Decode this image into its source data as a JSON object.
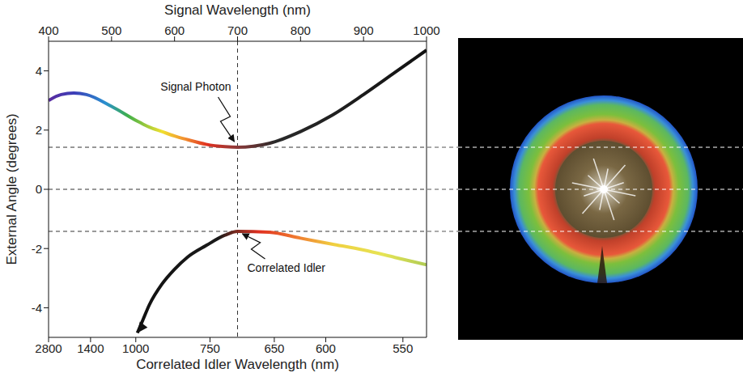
{
  "chart_data": {
    "type": "line",
    "xlabel": "Signal Wavelength (nm)",
    "x2label": "Correlated Idler Wavelength (nm)",
    "ylabel": "External Angle (degrees)",
    "x": [
      400,
      420,
      440,
      460,
      500,
      541,
      550,
      560,
      580,
      600,
      620,
      650,
      680,
      700,
      750,
      800,
      850,
      900,
      950,
      1000
    ],
    "series": [
      {
        "values": [
          3.0,
          3.2,
          3.25,
          3.2,
          2.8,
          2.3,
          2.2,
          2.1,
          1.95,
          1.8,
          1.68,
          1.52,
          1.44,
          1.42,
          1.55,
          1.95,
          2.5,
          3.2,
          3.95,
          4.7
        ]
      },
      {
        "values": [
          null,
          null,
          null,
          null,
          null,
          -4.85,
          -4.4,
          -3.9,
          -3.2,
          -2.7,
          -2.3,
          -1.9,
          -1.55,
          -1.42,
          -1.45,
          -1.65,
          -1.85,
          -2.05,
          -2.3,
          -2.55
        ],
        "marker": "arrow"
      }
    ],
    "xlim": [
      400,
      1000
    ],
    "xticks": [
      400,
      500,
      600,
      700,
      800,
      900,
      1000
    ],
    "x2lim": [
      2800,
      538.46
    ],
    "x2ticks": [
      2800,
      1400,
      1000,
      750,
      650,
      600,
      550
    ],
    "ylim": [
      -5,
      5
    ],
    "yticks": [
      -4,
      -2,
      0,
      2,
      4
    ],
    "reference_lines": {
      "x": [
        700
      ],
      "y": [
        1.42,
        0,
        -1.42
      ]
    },
    "annotations": [
      {
        "text": "Signal Photon",
        "x": 700,
        "y": 1.42
      },
      {
        "text": "Correlated Idler",
        "x": 700,
        "y": -1.42
      }
    ]
  }
}
